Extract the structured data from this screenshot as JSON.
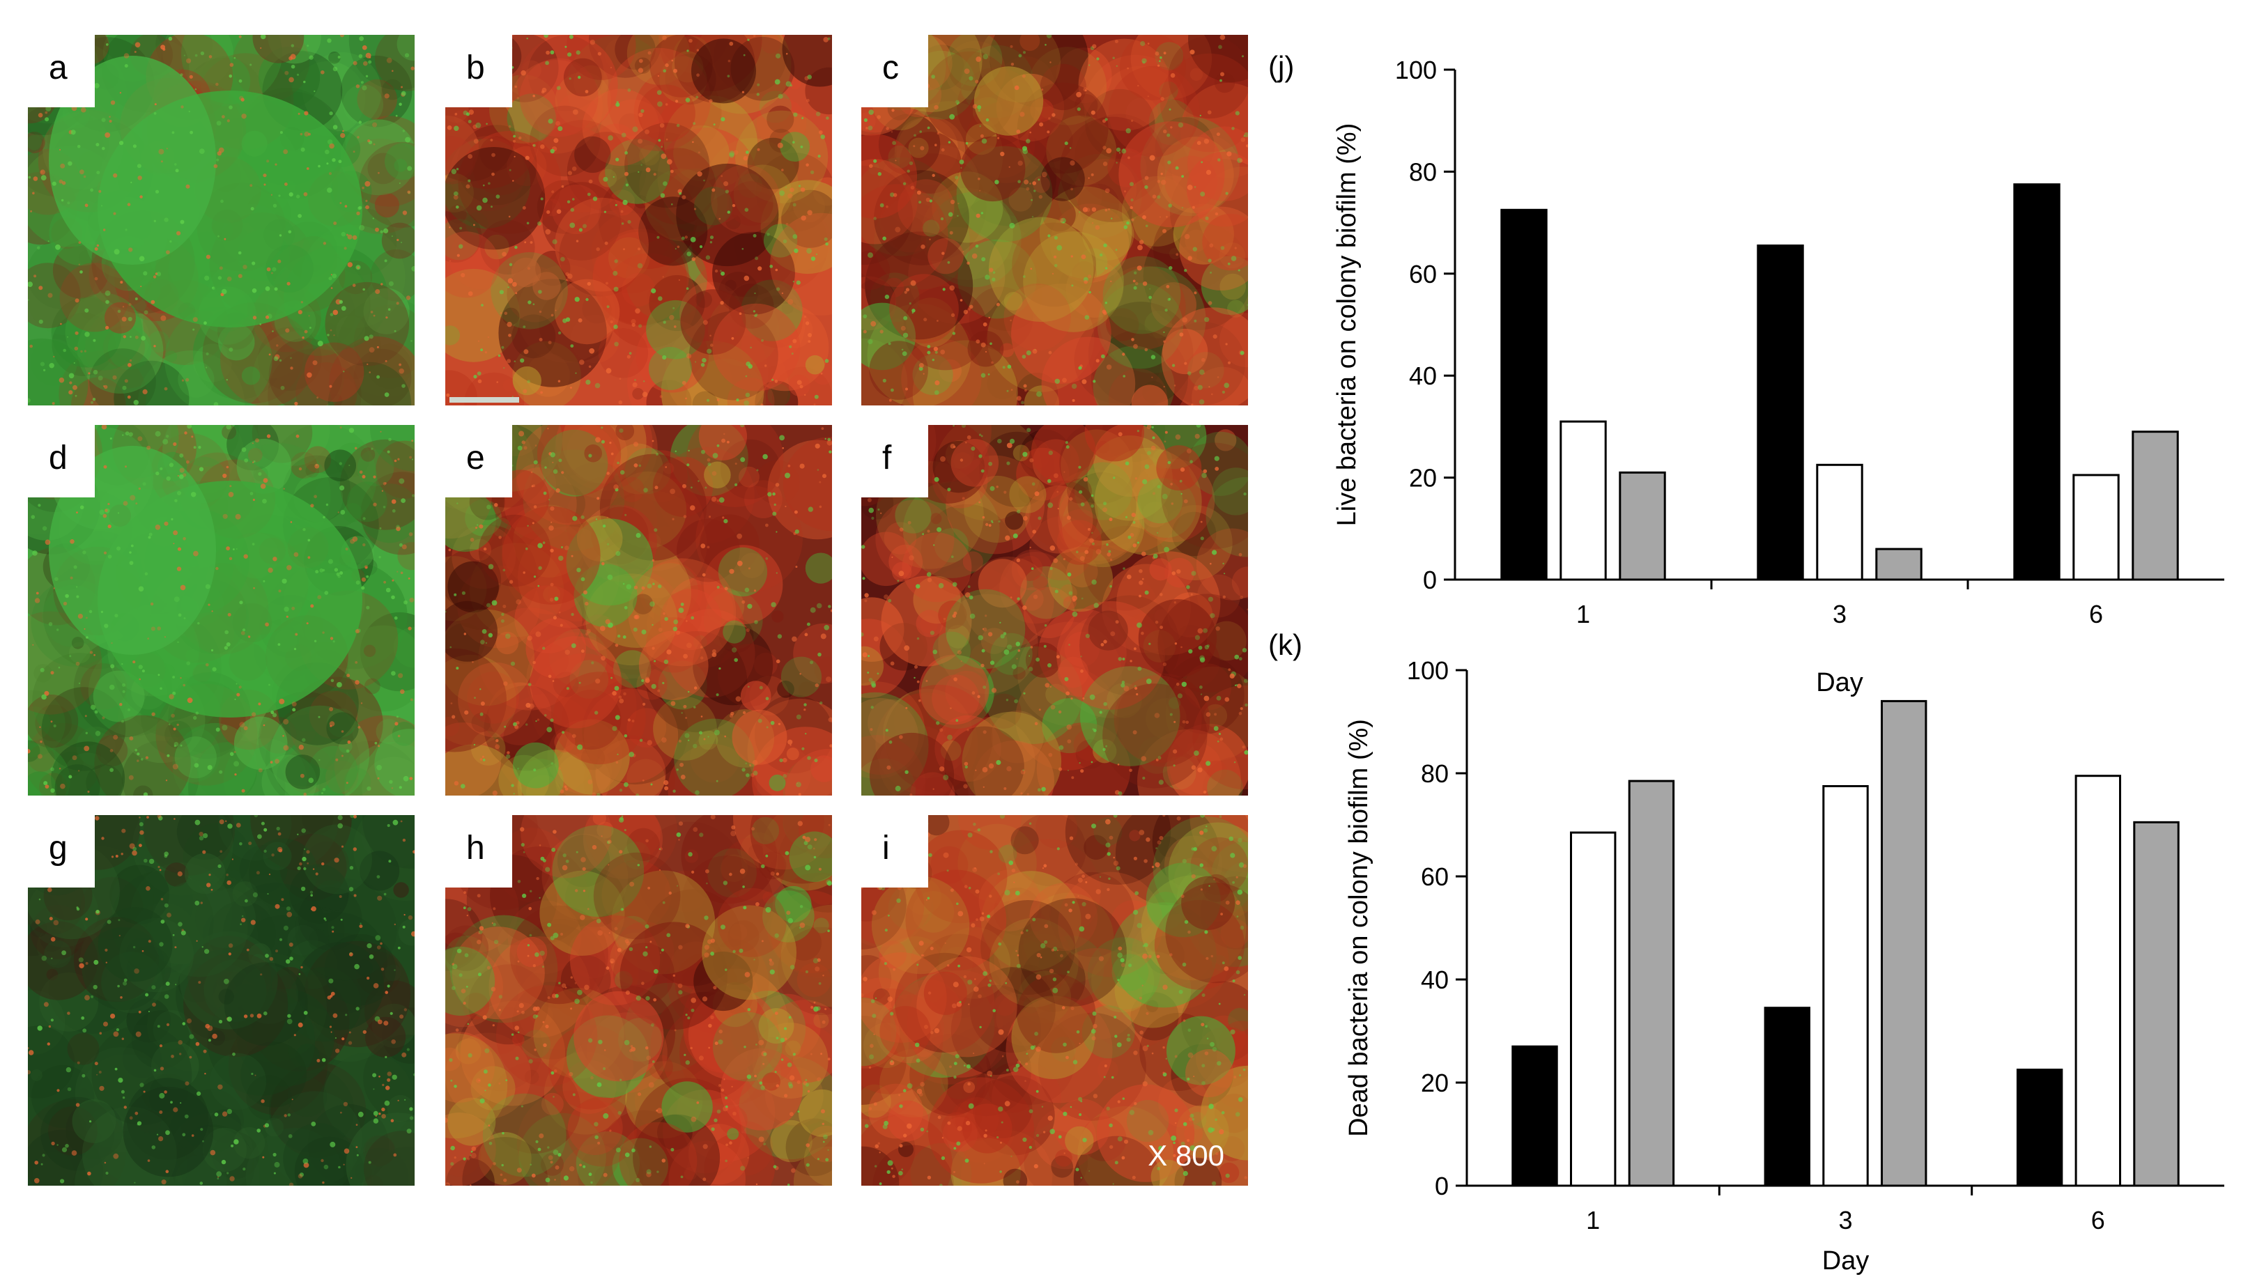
{
  "panels": [
    {
      "label": "a",
      "tint": "green",
      "base": "#3f9a3c"
    },
    {
      "label": "b",
      "tint": "red",
      "base": "#c9492a"
    },
    {
      "label": "c",
      "tint": "red",
      "base": "#8f2516"
    },
    {
      "label": "d",
      "tint": "green",
      "base": "#45a83f"
    },
    {
      "label": "e",
      "tint": "red",
      "base": "#7a2617"
    },
    {
      "label": "f",
      "tint": "red",
      "base": "#5a1510"
    },
    {
      "label": "g",
      "tint": "darkgreen",
      "base": "#1f4a1e"
    },
    {
      "label": "h",
      "tint": "red",
      "base": "#8a3620"
    },
    {
      "label": "i",
      "tint": "red",
      "base": "#b8562a",
      "magnification": "X 800"
    }
  ],
  "chart_data": [
    {
      "id": "j",
      "type": "bar",
      "panel_label": "(j)",
      "title": "",
      "xlabel": "Day",
      "ylabel": "Live bacteria on colony biofilm (%)",
      "categories": [
        "1",
        "3",
        "6"
      ],
      "ylim": [
        0,
        100
      ],
      "yticks": [
        0,
        20,
        40,
        60,
        80,
        100
      ],
      "series": [
        {
          "values": [
            72.5,
            65.5,
            77.5
          ],
          "color": "#000000"
        },
        {
          "values": [
            31,
            22.5,
            20.5
          ],
          "color": "#ffffff"
        },
        {
          "values": [
            21,
            6,
            29
          ],
          "color": "#a6a6a6"
        }
      ],
      "grid": false,
      "legend": "none"
    },
    {
      "id": "k",
      "type": "bar",
      "panel_label": "(k)",
      "title": "",
      "xlabel": "Day",
      "ylabel": "Dead bacteria on colony biofilm (%)",
      "categories": [
        "1",
        "3",
        "6"
      ],
      "ylim": [
        0,
        100
      ],
      "yticks": [
        0,
        20,
        40,
        60,
        80,
        100
      ],
      "series": [
        {
          "values": [
            27,
            34.5,
            22.5
          ],
          "color": "#000000"
        },
        {
          "values": [
            68.5,
            77.5,
            79.5
          ],
          "color": "#ffffff"
        },
        {
          "values": [
            78.5,
            94,
            70.5
          ],
          "color": "#a6a6a6"
        }
      ],
      "grid": false,
      "legend": "none"
    }
  ]
}
